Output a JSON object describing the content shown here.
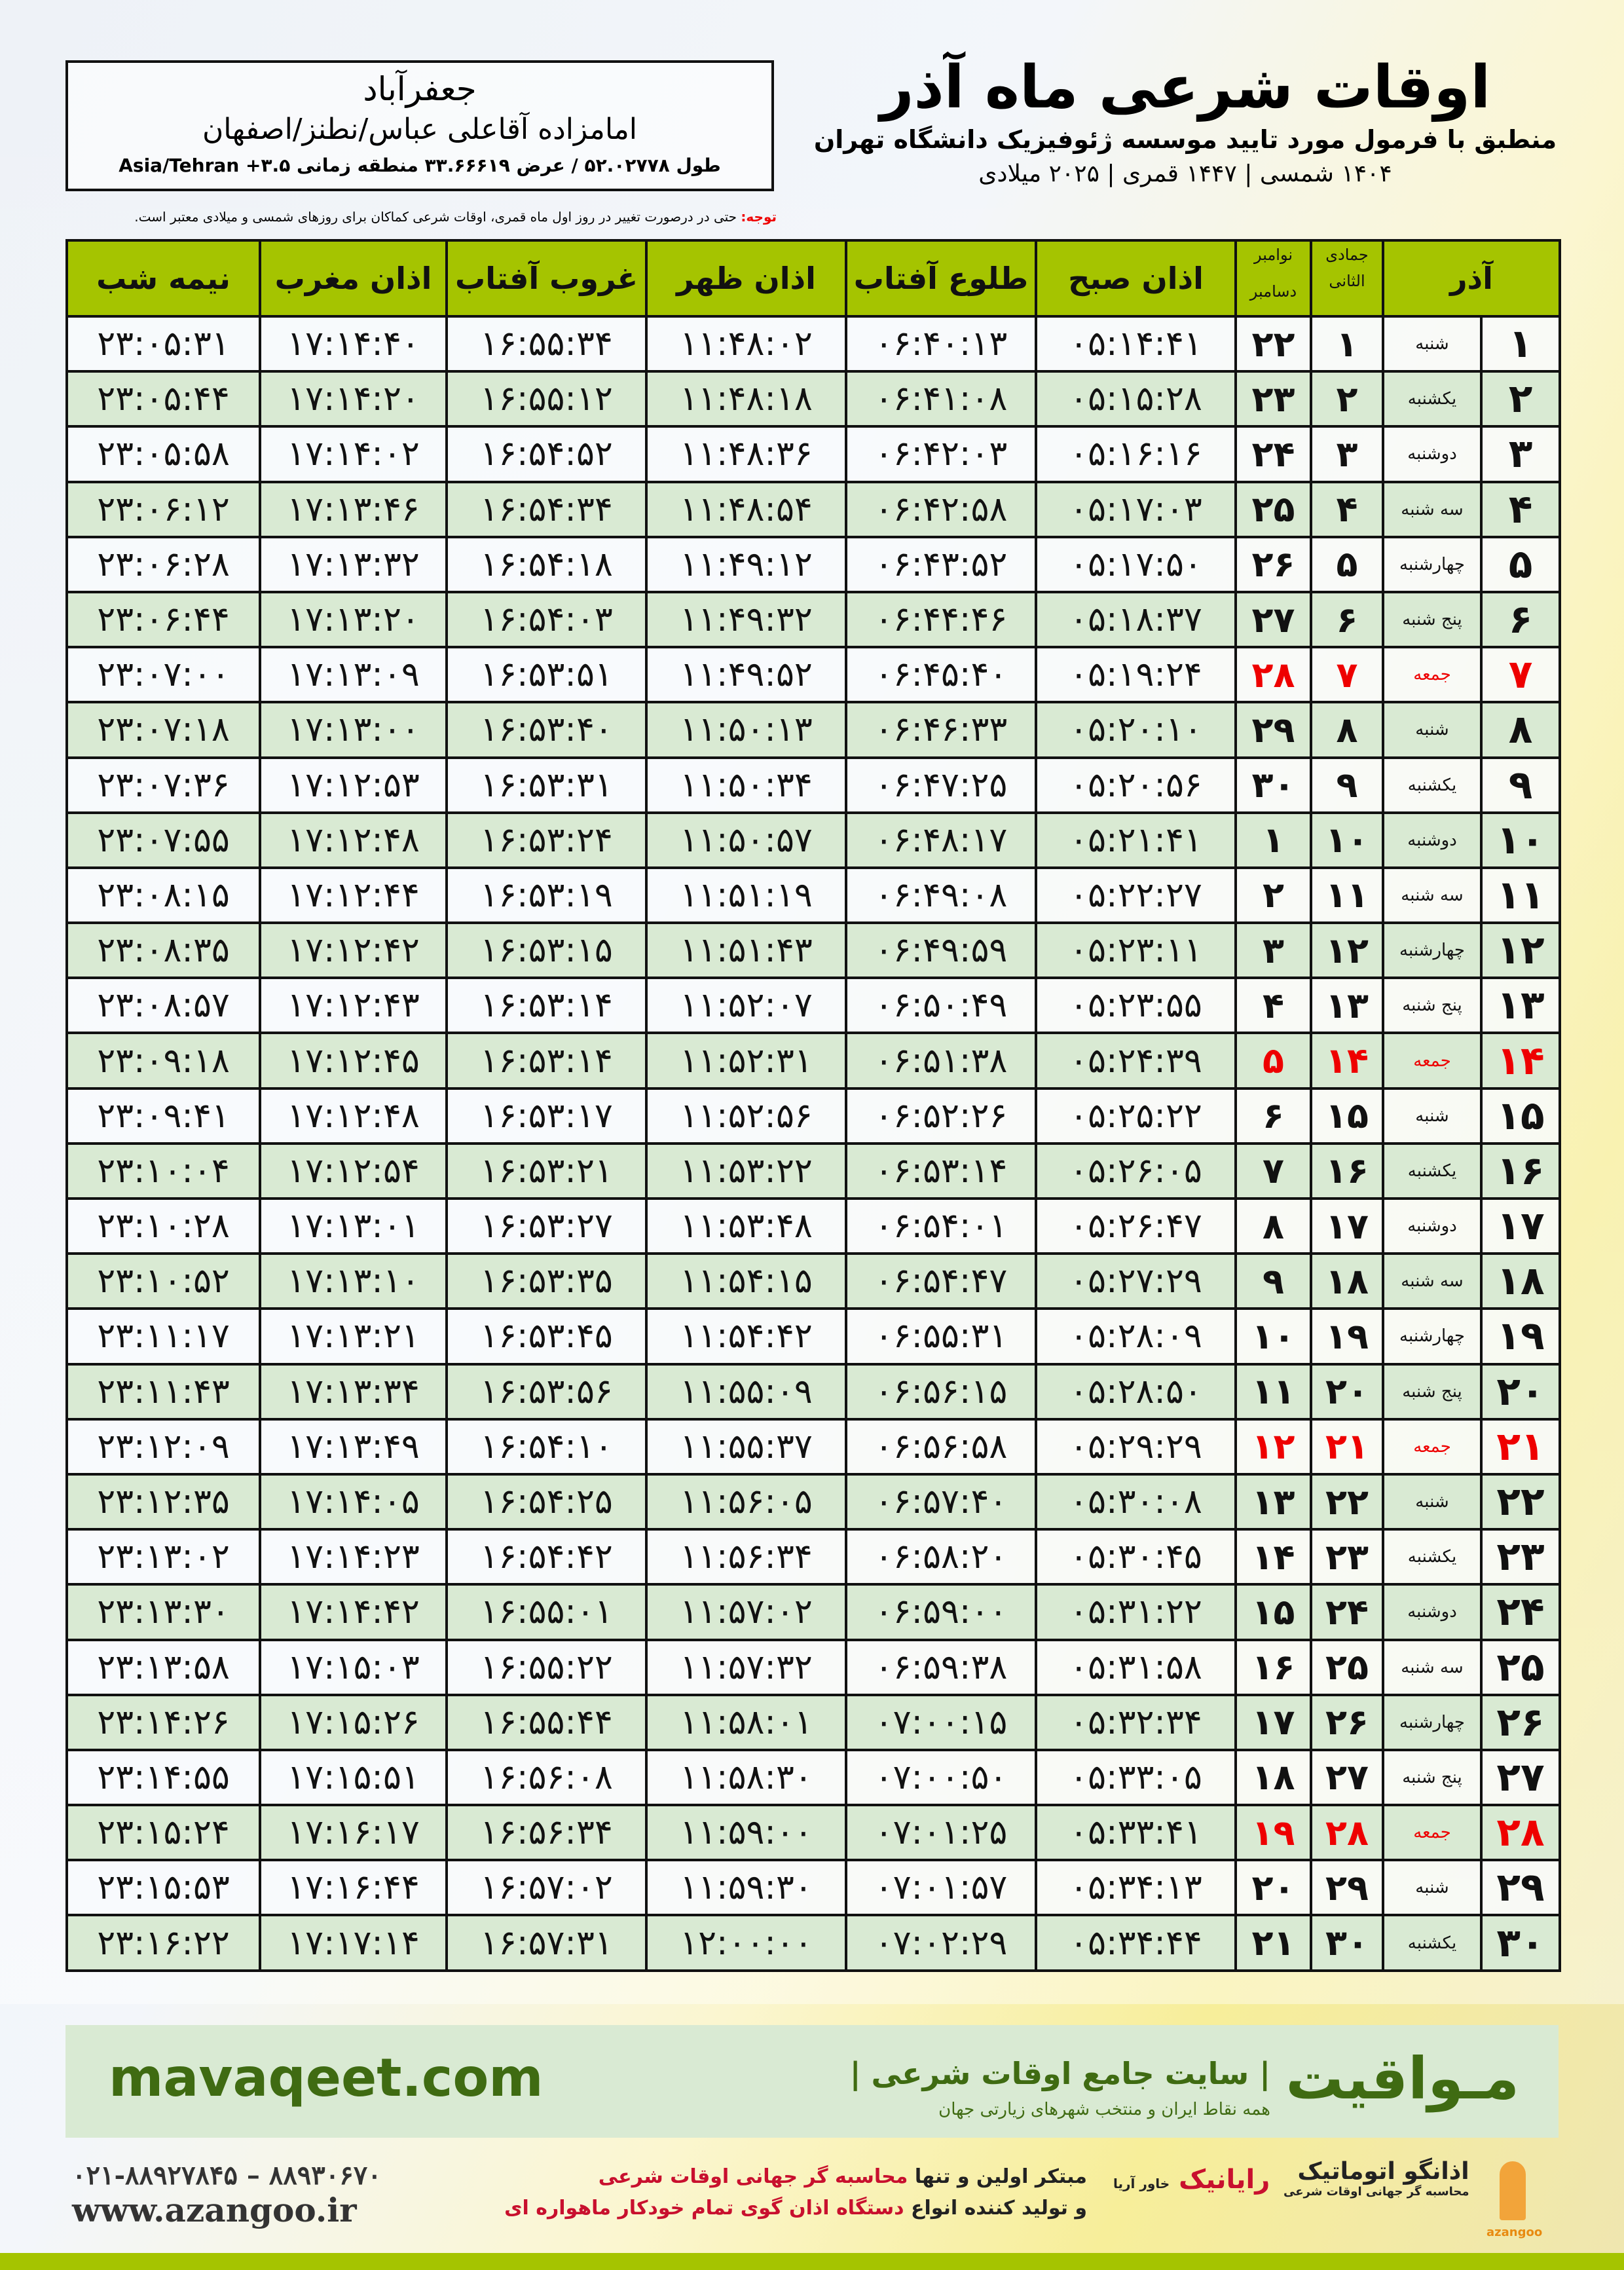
{
  "location": {
    "city": "جعفرآباد",
    "place": "امامزاده آقاعلی عباس/نطنز/اصفهان",
    "coords": "طول ۵۲.۰۲۷۷۸ / عرض ۳۳.۶۶۶۱۹ منطقه زمانی ۳.۵+ Asia/Tehran"
  },
  "note": {
    "label": "توجه:",
    "text": " حتی در درصورت تغییر در روز اول ماه قمری، اوقات شرعی کماکان برای روزهای شمسی و میلادی معتبر است."
  },
  "header": {
    "title": "اوقات شرعی ماه آذر",
    "subtitle": "منطبق با فرمول مورد تایید موسسه ژئوفیزیک دانشگاه تهران",
    "years": "۱۴۰۴ شمسی | ۱۴۴۷ قمری | ۲۰۲۵ میلادی"
  },
  "columns": {
    "month": "آذر",
    "hijri": "جمادی الثانی",
    "greg1": "نوامبر",
    "greg2": "دسامبر",
    "fajr": "اذان صبح",
    "sunrise": "طلوع آفتاب",
    "dhuhr": "اذان ظهر",
    "sunset": "غروب آفتاب",
    "maghrib": "اذان مغرب",
    "midnight": "نیمه شب"
  },
  "colors": {
    "accent": "#a5c400",
    "friday": "#ee0000",
    "row_alt": "#d9ead3"
  },
  "rows": [
    [
      "۱",
      "شنبه",
      "۱",
      "۲۲",
      "۰۵:۱۴:۴۱",
      "۰۶:۴۰:۱۳",
      "۱۱:۴۸:۰۲",
      "۱۶:۵۵:۳۴",
      "۱۷:۱۴:۴۰",
      "۲۳:۰۵:۳۱"
    ],
    [
      "۲",
      "یکشنبه",
      "۲",
      "۲۳",
      "۰۵:۱۵:۲۸",
      "۰۶:۴۱:۰۸",
      "۱۱:۴۸:۱۸",
      "۱۶:۵۵:۱۲",
      "۱۷:۱۴:۲۰",
      "۲۳:۰۵:۴۴"
    ],
    [
      "۳",
      "دوشنبه",
      "۳",
      "۲۴",
      "۰۵:۱۶:۱۶",
      "۰۶:۴۲:۰۳",
      "۱۱:۴۸:۳۶",
      "۱۶:۵۴:۵۲",
      "۱۷:۱۴:۰۲",
      "۲۳:۰۵:۵۸"
    ],
    [
      "۴",
      "سه شنبه",
      "۴",
      "۲۵",
      "۰۵:۱۷:۰۳",
      "۰۶:۴۲:۵۸",
      "۱۱:۴۸:۵۴",
      "۱۶:۵۴:۳۴",
      "۱۷:۱۳:۴۶",
      "۲۳:۰۶:۱۲"
    ],
    [
      "۵",
      "چهارشنبه",
      "۵",
      "۲۶",
      "۰۵:۱۷:۵۰",
      "۰۶:۴۳:۵۲",
      "۱۱:۴۹:۱۲",
      "۱۶:۵۴:۱۸",
      "۱۷:۱۳:۳۲",
      "۲۳:۰۶:۲۸"
    ],
    [
      "۶",
      "پنج شنبه",
      "۶",
      "۲۷",
      "۰۵:۱۸:۳۷",
      "۰۶:۴۴:۴۶",
      "۱۱:۴۹:۳۲",
      "۱۶:۵۴:۰۳",
      "۱۷:۱۳:۲۰",
      "۲۳:۰۶:۴۴"
    ],
    [
      "۷",
      "جمعه",
      "۷",
      "۲۸",
      "۰۵:۱۹:۲۴",
      "۰۶:۴۵:۴۰",
      "۱۱:۴۹:۵۲",
      "۱۶:۵۳:۵۱",
      "۱۷:۱۳:۰۹",
      "۲۳:۰۷:۰۰"
    ],
    [
      "۸",
      "شنبه",
      "۸",
      "۲۹",
      "۰۵:۲۰:۱۰",
      "۰۶:۴۶:۳۳",
      "۱۱:۵۰:۱۳",
      "۱۶:۵۳:۴۰",
      "۱۷:۱۳:۰۰",
      "۲۳:۰۷:۱۸"
    ],
    [
      "۹",
      "یکشنبه",
      "۹",
      "۳۰",
      "۰۵:۲۰:۵۶",
      "۰۶:۴۷:۲۵",
      "۱۱:۵۰:۳۴",
      "۱۶:۵۳:۳۱",
      "۱۷:۱۲:۵۳",
      "۲۳:۰۷:۳۶"
    ],
    [
      "۱۰",
      "دوشنبه",
      "۱۰",
      "۱",
      "۰۵:۲۱:۴۱",
      "۰۶:۴۸:۱۷",
      "۱۱:۵۰:۵۷",
      "۱۶:۵۳:۲۴",
      "۱۷:۱۲:۴۸",
      "۲۳:۰۷:۵۵"
    ],
    [
      "۱۱",
      "سه شنبه",
      "۱۱",
      "۲",
      "۰۵:۲۲:۲۷",
      "۰۶:۴۹:۰۸",
      "۱۱:۵۱:۱۹",
      "۱۶:۵۳:۱۹",
      "۱۷:۱۲:۴۴",
      "۲۳:۰۸:۱۵"
    ],
    [
      "۱۲",
      "چهارشنبه",
      "۱۲",
      "۳",
      "۰۵:۲۳:۱۱",
      "۰۶:۴۹:۵۹",
      "۱۱:۵۱:۴۳",
      "۱۶:۵۳:۱۵",
      "۱۷:۱۲:۴۲",
      "۲۳:۰۸:۳۵"
    ],
    [
      "۱۳",
      "پنج شنبه",
      "۱۳",
      "۴",
      "۰۵:۲۳:۵۵",
      "۰۶:۵۰:۴۹",
      "۱۱:۵۲:۰۷",
      "۱۶:۵۳:۱۴",
      "۱۷:۱۲:۴۳",
      "۲۳:۰۸:۵۷"
    ],
    [
      "۱۴",
      "جمعه",
      "۱۴",
      "۵",
      "۰۵:۲۴:۳۹",
      "۰۶:۵۱:۳۸",
      "۱۱:۵۲:۳۱",
      "۱۶:۵۳:۱۴",
      "۱۷:۱۲:۴۵",
      "۲۳:۰۹:۱۸"
    ],
    [
      "۱۵",
      "شنبه",
      "۱۵",
      "۶",
      "۰۵:۲۵:۲۲",
      "۰۶:۵۲:۲۶",
      "۱۱:۵۲:۵۶",
      "۱۶:۵۳:۱۷",
      "۱۷:۱۲:۴۸",
      "۲۳:۰۹:۴۱"
    ],
    [
      "۱۶",
      "یکشنبه",
      "۱۶",
      "۷",
      "۰۵:۲۶:۰۵",
      "۰۶:۵۳:۱۴",
      "۱۱:۵۳:۲۲",
      "۱۶:۵۳:۲۱",
      "۱۷:۱۲:۵۴",
      "۲۳:۱۰:۰۴"
    ],
    [
      "۱۷",
      "دوشنبه",
      "۱۷",
      "۸",
      "۰۵:۲۶:۴۷",
      "۰۶:۵۴:۰۱",
      "۱۱:۵۳:۴۸",
      "۱۶:۵۳:۲۷",
      "۱۷:۱۳:۰۱",
      "۲۳:۱۰:۲۸"
    ],
    [
      "۱۸",
      "سه شنبه",
      "۱۸",
      "۹",
      "۰۵:۲۷:۲۹",
      "۰۶:۵۴:۴۷",
      "۱۱:۵۴:۱۵",
      "۱۶:۵۳:۳۵",
      "۱۷:۱۳:۱۰",
      "۲۳:۱۰:۵۲"
    ],
    [
      "۱۹",
      "چهارشنبه",
      "۱۹",
      "۱۰",
      "۰۵:۲۸:۰۹",
      "۰۶:۵۵:۳۱",
      "۱۱:۵۴:۴۲",
      "۱۶:۵۳:۴۵",
      "۱۷:۱۳:۲۱",
      "۲۳:۱۱:۱۷"
    ],
    [
      "۲۰",
      "پنج شنبه",
      "۲۰",
      "۱۱",
      "۰۵:۲۸:۵۰",
      "۰۶:۵۶:۱۵",
      "۱۱:۵۵:۰۹",
      "۱۶:۵۳:۵۶",
      "۱۷:۱۳:۳۴",
      "۲۳:۱۱:۴۳"
    ],
    [
      "۲۱",
      "جمعه",
      "۲۱",
      "۱۲",
      "۰۵:۲۹:۲۹",
      "۰۶:۵۶:۵۸",
      "۱۱:۵۵:۳۷",
      "۱۶:۵۴:۱۰",
      "۱۷:۱۳:۴۹",
      "۲۳:۱۲:۰۹"
    ],
    [
      "۲۲",
      "شنبه",
      "۲۲",
      "۱۳",
      "۰۵:۳۰:۰۸",
      "۰۶:۵۷:۴۰",
      "۱۱:۵۶:۰۵",
      "۱۶:۵۴:۲۵",
      "۱۷:۱۴:۰۵",
      "۲۳:۱۲:۳۵"
    ],
    [
      "۲۳",
      "یکشنبه",
      "۲۳",
      "۱۴",
      "۰۵:۳۰:۴۵",
      "۰۶:۵۸:۲۰",
      "۱۱:۵۶:۳۴",
      "۱۶:۵۴:۴۲",
      "۱۷:۱۴:۲۳",
      "۲۳:۱۳:۰۲"
    ],
    [
      "۲۴",
      "دوشنبه",
      "۲۴",
      "۱۵",
      "۰۵:۳۱:۲۲",
      "۰۶:۵۹:۰۰",
      "۱۱:۵۷:۰۲",
      "۱۶:۵۵:۰۱",
      "۱۷:۱۴:۴۲",
      "۲۳:۱۳:۳۰"
    ],
    [
      "۲۵",
      "سه شنبه",
      "۲۵",
      "۱۶",
      "۰۵:۳۱:۵۸",
      "۰۶:۵۹:۳۸",
      "۱۱:۵۷:۳۲",
      "۱۶:۵۵:۲۲",
      "۱۷:۱۵:۰۳",
      "۲۳:۱۳:۵۸"
    ],
    [
      "۲۶",
      "چهارشنبه",
      "۲۶",
      "۱۷",
      "۰۵:۳۲:۳۴",
      "۰۷:۰۰:۱۵",
      "۱۱:۵۸:۰۱",
      "۱۶:۵۵:۴۴",
      "۱۷:۱۵:۲۶",
      "۲۳:۱۴:۲۶"
    ],
    [
      "۲۷",
      "پنج شنبه",
      "۲۷",
      "۱۸",
      "۰۵:۳۳:۰۵",
      "۰۷:۰۰:۵۰",
      "۱۱:۵۸:۳۰",
      "۱۶:۵۶:۰۸",
      "۱۷:۱۵:۵۱",
      "۲۳:۱۴:۵۵"
    ],
    [
      "۲۸",
      "جمعه",
      "۲۸",
      "۱۹",
      "۰۵:۳۳:۴۱",
      "۰۷:۰۱:۲۵",
      "۱۱:۵۹:۰۰",
      "۱۶:۵۶:۳۴",
      "۱۷:۱۶:۱۷",
      "۲۳:۱۵:۲۴"
    ],
    [
      "۲۹",
      "شنبه",
      "۲۹",
      "۲۰",
      "۰۵:۳۴:۱۳",
      "۰۷:۰۱:۵۷",
      "۱۱:۵۹:۳۰",
      "۱۶:۵۷:۰۲",
      "۱۷:۱۶:۴۴",
      "۲۳:۱۵:۵۳"
    ],
    [
      "۳۰",
      "یکشنبه",
      "۳۰",
      "۲۱",
      "۰۵:۳۴:۴۴",
      "۰۷:۰۲:۲۹",
      "۱۲:۰۰:۰۰",
      "۱۶:۵۷:۳۱",
      "۱۷:۱۷:۱۴",
      "۲۳:۱۶:۲۲"
    ]
  ],
  "friday_label": "جمعه",
  "footer": {
    "brand": "مـواقیت",
    "brand_sub": "| سایت جامع اوقات شرعی |",
    "brand_sub2": "همه نقاط ایران و منتخب شهرهای زیارتی جهان",
    "site": "mavaqeet.com",
    "phone": "۰۲۱-۸۸۹۲۷۸۴۵ – ۸۸۹۳۰۶۷۰",
    "www": "www.azangoo.ir",
    "slogan1a": "مبتکر اولین و تنها ",
    "slogan1b": "محاسبه گر جهانی اوقات شرعی",
    "slogan2a": "و تولید کننده انواع ",
    "slogan2b": "دستگاه اذان گوی تمام خودکار ماهواره ای",
    "logo_rayanik": "رایانیک",
    "logo_rayanik_sub": "خاور آریا",
    "logo_azangoo": "اذانگو اتوماتیک",
    "logo_azangoo_sub": "محاسبه گر جهانی اوقات شرعی",
    "logo_azangoo_en": "azangoo"
  }
}
